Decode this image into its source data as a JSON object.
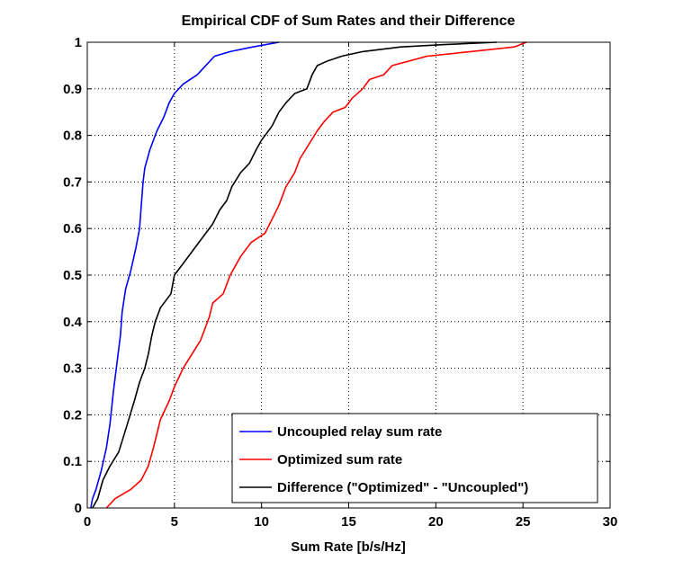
{
  "chart_data": {
    "type": "line",
    "title": "Empirical CDF of Sum Rates and their Difference",
    "xlabel": "Sum Rate [b/s/Hz]",
    "ylabel": "",
    "xlim": [
      0,
      30
    ],
    "ylim": [
      0,
      1
    ],
    "xticks": [
      0,
      5,
      10,
      15,
      20,
      25,
      30
    ],
    "yticks": [
      0,
      0.1,
      0.2,
      0.3,
      0.4,
      0.5,
      0.6,
      0.7,
      0.8,
      0.9,
      1
    ],
    "grid": true,
    "legend_position": "bottom-right",
    "series": [
      {
        "name": "Uncoupled relay sum rate",
        "color": "#0000ff",
        "points": [
          [
            0.2,
            0
          ],
          [
            0.3,
            0.02
          ],
          [
            0.5,
            0.04
          ],
          [
            0.8,
            0.08
          ],
          [
            1.1,
            0.13
          ],
          [
            1.3,
            0.18
          ],
          [
            1.5,
            0.25
          ],
          [
            1.7,
            0.31
          ],
          [
            1.9,
            0.37
          ],
          [
            2.0,
            0.42
          ],
          [
            2.2,
            0.47
          ],
          [
            2.5,
            0.51
          ],
          [
            2.8,
            0.56
          ],
          [
            3.0,
            0.6
          ],
          [
            3.1,
            0.65
          ],
          [
            3.2,
            0.7
          ],
          [
            3.3,
            0.73
          ],
          [
            3.6,
            0.77
          ],
          [
            4.0,
            0.81
          ],
          [
            4.4,
            0.84
          ],
          [
            4.7,
            0.87
          ],
          [
            5.0,
            0.89
          ],
          [
            5.5,
            0.91
          ],
          [
            6.3,
            0.93
          ],
          [
            6.8,
            0.95
          ],
          [
            7.3,
            0.97
          ],
          [
            8.2,
            0.98
          ],
          [
            9.5,
            0.99
          ],
          [
            11.0,
            1.0
          ]
        ]
      },
      {
        "name": "Optimized sum rate",
        "color": "#ff0000",
        "points": [
          [
            1.1,
            0
          ],
          [
            1.6,
            0.02
          ],
          [
            2.5,
            0.04
          ],
          [
            3.1,
            0.06
          ],
          [
            3.5,
            0.09
          ],
          [
            3.8,
            0.13
          ],
          [
            4.2,
            0.19
          ],
          [
            4.7,
            0.23
          ],
          [
            5.0,
            0.26
          ],
          [
            5.5,
            0.3
          ],
          [
            6.0,
            0.33
          ],
          [
            6.5,
            0.36
          ],
          [
            7.0,
            0.41
          ],
          [
            7.2,
            0.44
          ],
          [
            7.8,
            0.46
          ],
          [
            8.2,
            0.5
          ],
          [
            8.8,
            0.54
          ],
          [
            9.4,
            0.57
          ],
          [
            10.2,
            0.59
          ],
          [
            10.6,
            0.62
          ],
          [
            11.0,
            0.65
          ],
          [
            11.4,
            0.69
          ],
          [
            11.9,
            0.72
          ],
          [
            12.2,
            0.75
          ],
          [
            12.7,
            0.78
          ],
          [
            13.2,
            0.81
          ],
          [
            13.6,
            0.83
          ],
          [
            14.1,
            0.85
          ],
          [
            14.8,
            0.86
          ],
          [
            15.2,
            0.88
          ],
          [
            15.8,
            0.9
          ],
          [
            16.2,
            0.92
          ],
          [
            17.0,
            0.93
          ],
          [
            17.5,
            0.95
          ],
          [
            18.5,
            0.96
          ],
          [
            19.5,
            0.97
          ],
          [
            22.0,
            0.98
          ],
          [
            24.5,
            0.99
          ],
          [
            25.2,
            1.0
          ]
        ]
      },
      {
        "name": "Difference (\"Optimized\" - \"Uncoupled\")",
        "color": "#000000",
        "points": [
          [
            0.3,
            0
          ],
          [
            0.6,
            0.02
          ],
          [
            0.9,
            0.06
          ],
          [
            1.3,
            0.09
          ],
          [
            1.8,
            0.12
          ],
          [
            2.3,
            0.18
          ],
          [
            2.7,
            0.23
          ],
          [
            3.0,
            0.27
          ],
          [
            3.3,
            0.3
          ],
          [
            3.5,
            0.33
          ],
          [
            3.7,
            0.37
          ],
          [
            3.9,
            0.4
          ],
          [
            4.2,
            0.43
          ],
          [
            4.8,
            0.46
          ],
          [
            5.0,
            0.5
          ],
          [
            5.6,
            0.53
          ],
          [
            6.2,
            0.56
          ],
          [
            6.8,
            0.59
          ],
          [
            7.2,
            0.61
          ],
          [
            7.6,
            0.64
          ],
          [
            8.0,
            0.66
          ],
          [
            8.3,
            0.69
          ],
          [
            8.8,
            0.72
          ],
          [
            9.3,
            0.74
          ],
          [
            9.7,
            0.77
          ],
          [
            10.0,
            0.79
          ],
          [
            10.6,
            0.82
          ],
          [
            11.0,
            0.85
          ],
          [
            11.4,
            0.87
          ],
          [
            11.9,
            0.89
          ],
          [
            12.6,
            0.9
          ],
          [
            12.9,
            0.93
          ],
          [
            13.2,
            0.95
          ],
          [
            13.8,
            0.96
          ],
          [
            14.6,
            0.97
          ],
          [
            15.8,
            0.98
          ],
          [
            18.0,
            0.99
          ],
          [
            20.5,
            0.995
          ],
          [
            23.5,
            1.0
          ]
        ]
      }
    ]
  }
}
